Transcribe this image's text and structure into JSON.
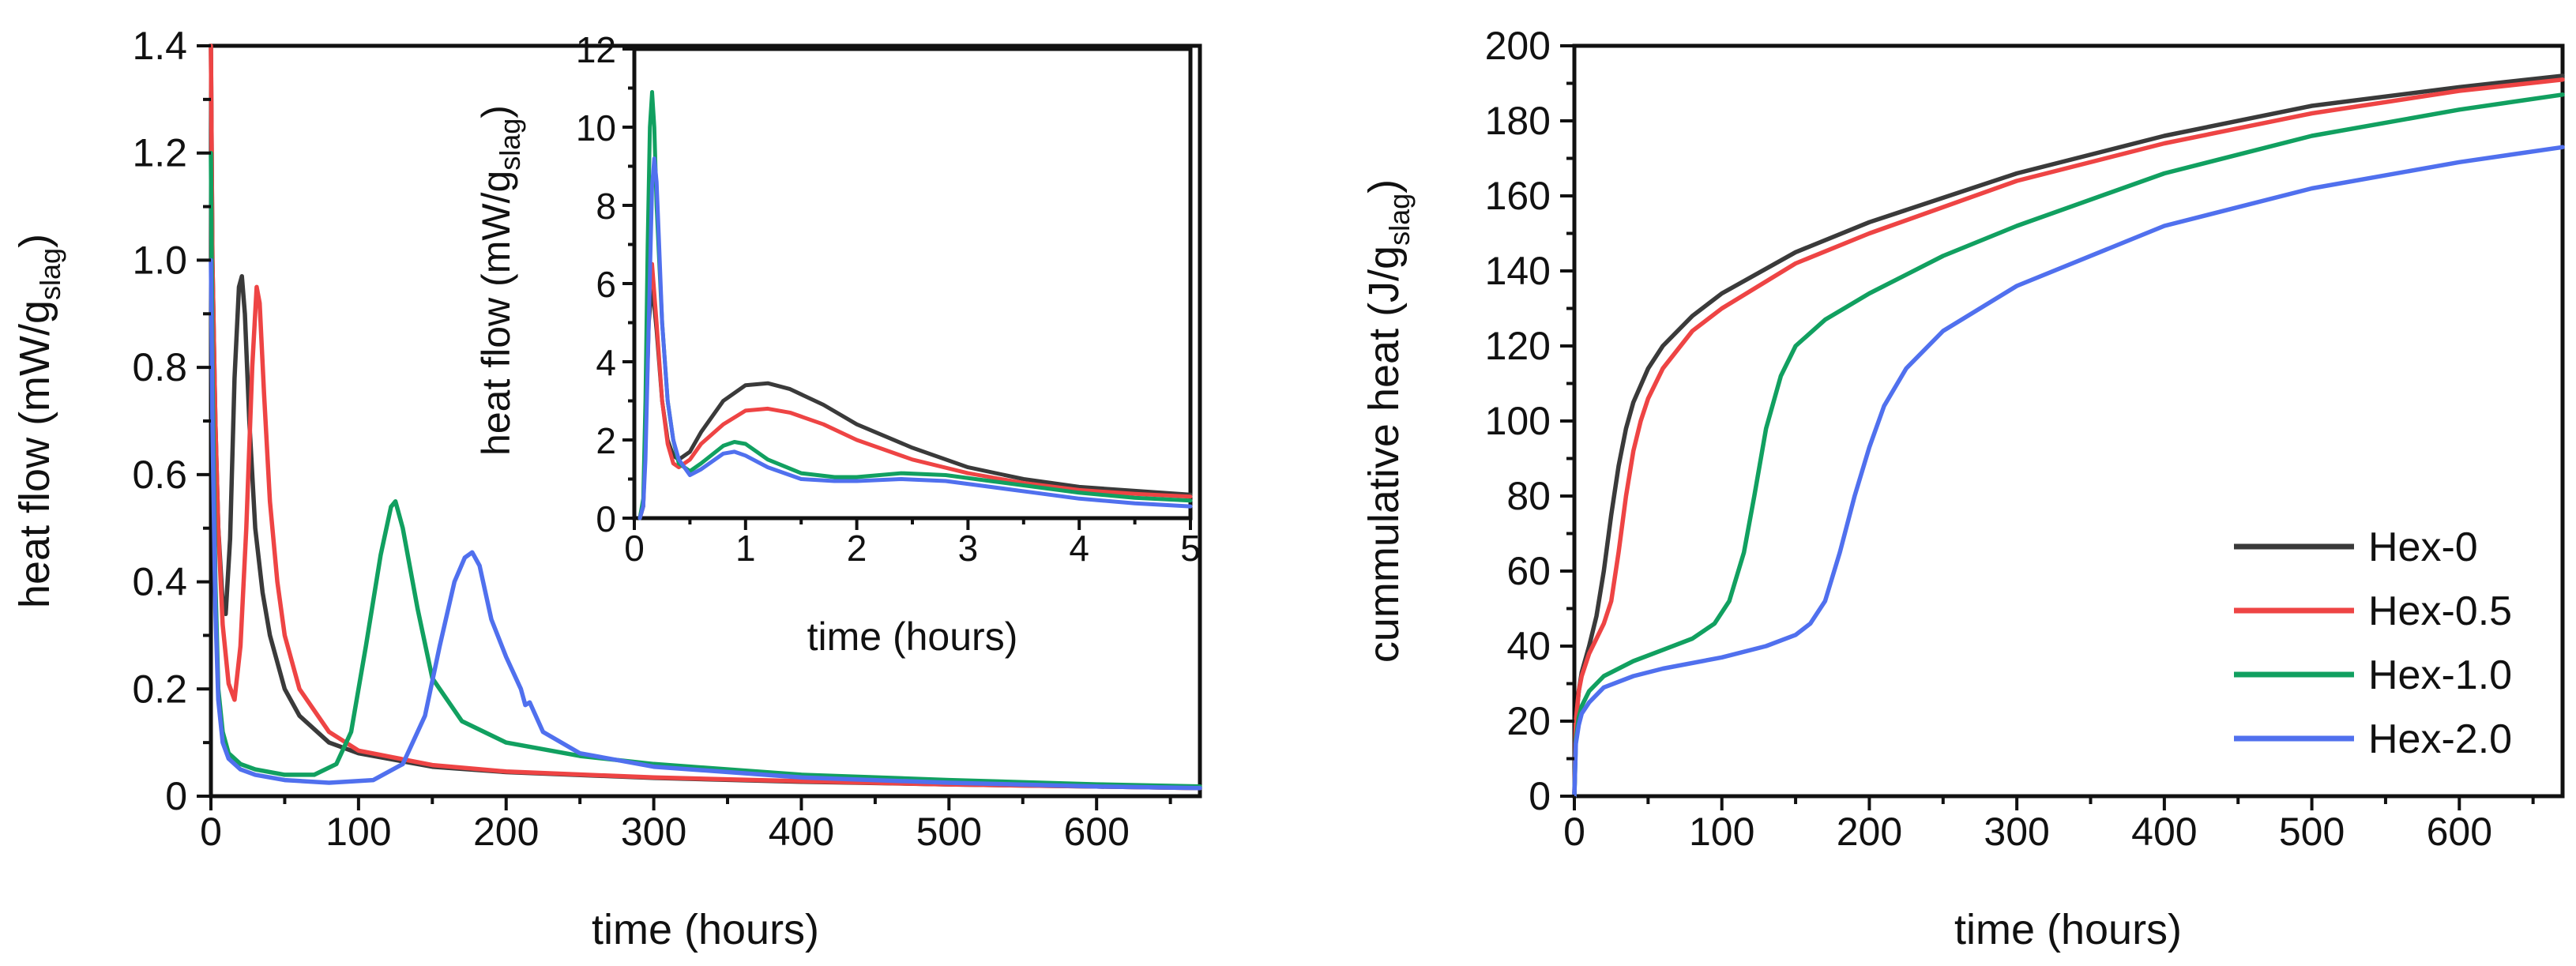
{
  "colors": {
    "Hex-0": "#3a3a3a",
    "Hex-0.5": "#ee4444",
    "Hex-1.0": "#11a060",
    "Hex-2.0": "#5070ee",
    "axis": "#111111"
  },
  "chart_data": [
    {
      "id": "heat-flow-main",
      "type": "line",
      "title": "",
      "xlabel": "time (hours)",
      "ylabel_main": "heat flow (mW/g",
      "ylabel_sub": "slag",
      "ylabel_close": ")",
      "xlim": [
        0,
        670
      ],
      "ylim": [
        0,
        1.4
      ],
      "xticks": [
        0,
        100,
        200,
        300,
        400,
        500,
        600
      ],
      "xtick_labels": [
        "0",
        "100",
        "200",
        "300",
        "400",
        "500",
        "600"
      ],
      "yticks": [
        0,
        0.2,
        0.4,
        0.6,
        0.8,
        1.0,
        1.2,
        1.4
      ],
      "ytick_labels": [
        "0",
        "0.2",
        "0.4",
        "0.6",
        "0.8",
        "1.0",
        "1.2",
        "1.4"
      ],
      "series": [
        {
          "name": "Hex-0",
          "x": [
            0,
            1,
            3,
            5,
            8,
            10,
            13,
            16,
            19,
            21,
            23,
            26,
            30,
            35,
            40,
            50,
            60,
            80,
            100,
            150,
            200,
            300,
            400,
            500,
            600,
            670
          ],
          "y": [
            1.4,
            1.0,
            0.7,
            0.5,
            0.36,
            0.34,
            0.48,
            0.78,
            0.95,
            0.97,
            0.9,
            0.7,
            0.5,
            0.38,
            0.3,
            0.2,
            0.15,
            0.1,
            0.08,
            0.055,
            0.045,
            0.034,
            0.027,
            0.022,
            0.018,
            0.015
          ]
        },
        {
          "name": "Hex-0.5",
          "x": [
            0,
            1,
            3,
            5,
            8,
            12,
            16,
            20,
            24,
            28,
            31,
            33,
            36,
            40,
            45,
            50,
            60,
            80,
            100,
            150,
            200,
            300,
            400,
            500,
            600,
            670
          ],
          "y": [
            1.4,
            1.0,
            0.7,
            0.5,
            0.32,
            0.21,
            0.18,
            0.28,
            0.5,
            0.8,
            0.95,
            0.92,
            0.75,
            0.55,
            0.4,
            0.3,
            0.2,
            0.12,
            0.085,
            0.058,
            0.046,
            0.035,
            0.028,
            0.022,
            0.018,
            0.015
          ]
        },
        {
          "name": "Hex-1.0",
          "x": [
            0,
            1,
            3,
            5,
            8,
            12,
            20,
            30,
            50,
            70,
            85,
            95,
            105,
            115,
            122,
            125,
            130,
            140,
            150,
            170,
            200,
            250,
            300,
            400,
            500,
            600,
            670
          ],
          "y": [
            1.2,
            0.8,
            0.4,
            0.2,
            0.12,
            0.08,
            0.06,
            0.05,
            0.04,
            0.04,
            0.06,
            0.12,
            0.28,
            0.45,
            0.54,
            0.55,
            0.5,
            0.35,
            0.22,
            0.14,
            0.1,
            0.075,
            0.06,
            0.04,
            0.03,
            0.022,
            0.018
          ]
        },
        {
          "name": "Hex-2.0",
          "x": [
            0,
            1,
            3,
            5,
            8,
            12,
            20,
            30,
            50,
            80,
            110,
            130,
            145,
            155,
            165,
            172,
            177,
            182,
            190,
            200,
            210,
            213,
            216,
            225,
            250,
            300,
            400,
            500,
            600,
            670
          ],
          "y": [
            1.0,
            0.7,
            0.35,
            0.18,
            0.1,
            0.07,
            0.05,
            0.04,
            0.03,
            0.025,
            0.03,
            0.06,
            0.15,
            0.28,
            0.4,
            0.445,
            0.455,
            0.43,
            0.33,
            0.26,
            0.2,
            0.17,
            0.175,
            0.12,
            0.08,
            0.055,
            0.035,
            0.025,
            0.018,
            0.015
          ]
        }
      ]
    },
    {
      "id": "heat-flow-inset",
      "type": "line",
      "title": "",
      "xlabel": "time (hours)",
      "ylabel_main": "heat flow (mW/g",
      "ylabel_sub": "slag",
      "ylabel_close": ")",
      "xlim": [
        0,
        5
      ],
      "ylim": [
        0,
        12
      ],
      "xticks": [
        0,
        1,
        2,
        3,
        4,
        5
      ],
      "xtick_labels": [
        "0",
        "1",
        "2",
        "3",
        "4",
        "5"
      ],
      "yticks": [
        0,
        2,
        4,
        6,
        8,
        10,
        12
      ],
      "ytick_labels": [
        "0",
        "2",
        "4",
        "6",
        "8",
        "10",
        "12"
      ],
      "series": [
        {
          "name": "Hex-0",
          "x": [
            0.05,
            0.08,
            0.1,
            0.13,
            0.16,
            0.2,
            0.25,
            0.3,
            0.35,
            0.4,
            0.5,
            0.6,
            0.8,
            1.0,
            1.2,
            1.4,
            1.7,
            2.0,
            2.5,
            3.0,
            3.5,
            4.0,
            4.5,
            5.0
          ],
          "y": [
            0,
            0.3,
            2.0,
            5.0,
            6.0,
            4.8,
            3.0,
            2.0,
            1.6,
            1.5,
            1.7,
            2.2,
            3.0,
            3.4,
            3.45,
            3.3,
            2.9,
            2.4,
            1.8,
            1.3,
            1.0,
            0.8,
            0.7,
            0.6
          ]
        },
        {
          "name": "Hex-0.5",
          "x": [
            0.05,
            0.08,
            0.1,
            0.13,
            0.16,
            0.2,
            0.25,
            0.3,
            0.35,
            0.4,
            0.5,
            0.6,
            0.8,
            1.0,
            1.2,
            1.4,
            1.7,
            2.0,
            2.5,
            3.0,
            3.5,
            4.0,
            4.5,
            5.0
          ],
          "y": [
            0,
            0.3,
            2.0,
            5.5,
            6.5,
            5.0,
            3.0,
            1.9,
            1.4,
            1.3,
            1.5,
            1.9,
            2.4,
            2.75,
            2.8,
            2.7,
            2.4,
            2.0,
            1.5,
            1.15,
            0.9,
            0.72,
            0.62,
            0.55
          ]
        },
        {
          "name": "Hex-1.0",
          "x": [
            0.05,
            0.08,
            0.1,
            0.12,
            0.14,
            0.16,
            0.18,
            0.2,
            0.25,
            0.3,
            0.35,
            0.4,
            0.5,
            0.6,
            0.8,
            0.9,
            1.0,
            1.2,
            1.5,
            1.8,
            2.0,
            2.4,
            2.8,
            3.2,
            3.6,
            4.0,
            4.5,
            5.0
          ],
          "y": [
            0,
            0.5,
            3.0,
            7.0,
            10.0,
            10.9,
            10.0,
            8.0,
            5.0,
            3.0,
            2.0,
            1.4,
            1.2,
            1.4,
            1.85,
            1.95,
            1.9,
            1.5,
            1.15,
            1.05,
            1.05,
            1.15,
            1.1,
            0.95,
            0.8,
            0.65,
            0.52,
            0.45
          ]
        },
        {
          "name": "Hex-2.0",
          "x": [
            0.05,
            0.08,
            0.1,
            0.13,
            0.16,
            0.18,
            0.2,
            0.22,
            0.25,
            0.3,
            0.35,
            0.4,
            0.5,
            0.6,
            0.8,
            0.9,
            1.0,
            1.2,
            1.5,
            1.8,
            2.0,
            2.4,
            2.8,
            3.2,
            3.6,
            4.0,
            4.5,
            5.0
          ],
          "y": [
            0,
            0.3,
            1.5,
            5.0,
            8.5,
            9.2,
            8.6,
            7.2,
            5.0,
            3.0,
            2.0,
            1.5,
            1.1,
            1.25,
            1.65,
            1.7,
            1.6,
            1.3,
            1.0,
            0.95,
            0.95,
            1.0,
            0.95,
            0.8,
            0.65,
            0.5,
            0.38,
            0.3
          ]
        }
      ]
    },
    {
      "id": "cumulative-heat",
      "type": "line",
      "title": "",
      "xlabel": "time (hours)",
      "ylabel_main": "cummulative heat (J/g",
      "ylabel_sub": "slag",
      "ylabel_close": ")",
      "xlim": [
        0,
        670
      ],
      "ylim": [
        0,
        200
      ],
      "xticks": [
        0,
        100,
        200,
        300,
        400,
        500,
        600
      ],
      "xtick_labels": [
        "0",
        "100",
        "200",
        "300",
        "400",
        "500",
        "600"
      ],
      "yticks": [
        0,
        20,
        40,
        60,
        80,
        100,
        120,
        140,
        160,
        180,
        200
      ],
      "ytick_labels": [
        "0",
        "20",
        "40",
        "60",
        "80",
        "100",
        "120",
        "140",
        "160",
        "180",
        "200"
      ],
      "legend_position": "bottom-right",
      "series": [
        {
          "name": "Hex-0",
          "x": [
            0,
            1,
            3,
            5,
            10,
            15,
            20,
            25,
            30,
            35,
            40,
            50,
            60,
            80,
            100,
            150,
            200,
            300,
            400,
            500,
            600,
            670
          ],
          "y": [
            0,
            20,
            28,
            33,
            40,
            48,
            60,
            75,
            88,
            98,
            105,
            114,
            120,
            128,
            134,
            145,
            153,
            166,
            176,
            184,
            189,
            192
          ]
        },
        {
          "name": "Hex-0.5",
          "x": [
            0,
            1,
            3,
            5,
            10,
            15,
            20,
            25,
            30,
            35,
            40,
            45,
            50,
            60,
            80,
            100,
            150,
            200,
            300,
            400,
            500,
            600,
            670
          ],
          "y": [
            0,
            20,
            28,
            32,
            38,
            42,
            46,
            52,
            65,
            80,
            92,
            100,
            106,
            114,
            124,
            130,
            142,
            150,
            164,
            174,
            182,
            188,
            191
          ]
        },
        {
          "name": "Hex-1.0",
          "x": [
            0,
            1,
            3,
            5,
            10,
            20,
            40,
            60,
            80,
            95,
            105,
            115,
            122,
            130,
            140,
            150,
            170,
            200,
            250,
            300,
            400,
            500,
            600,
            670
          ],
          "y": [
            0,
            15,
            21,
            24,
            28,
            32,
            36,
            39,
            42,
            46,
            52,
            65,
            80,
            98,
            112,
            120,
            127,
            134,
            144,
            152,
            166,
            176,
            183,
            187
          ]
        },
        {
          "name": "Hex-2.0",
          "x": [
            0,
            1,
            3,
            5,
            10,
            20,
            40,
            60,
            100,
            130,
            150,
            160,
            170,
            180,
            190,
            200,
            210,
            225,
            250,
            300,
            400,
            500,
            600,
            670
          ],
          "y": [
            0,
            14,
            19,
            22,
            25,
            29,
            32,
            34,
            37,
            40,
            43,
            46,
            52,
            65,
            80,
            93,
            104,
            114,
            124,
            136,
            152,
            162,
            169,
            173
          ]
        }
      ]
    }
  ]
}
